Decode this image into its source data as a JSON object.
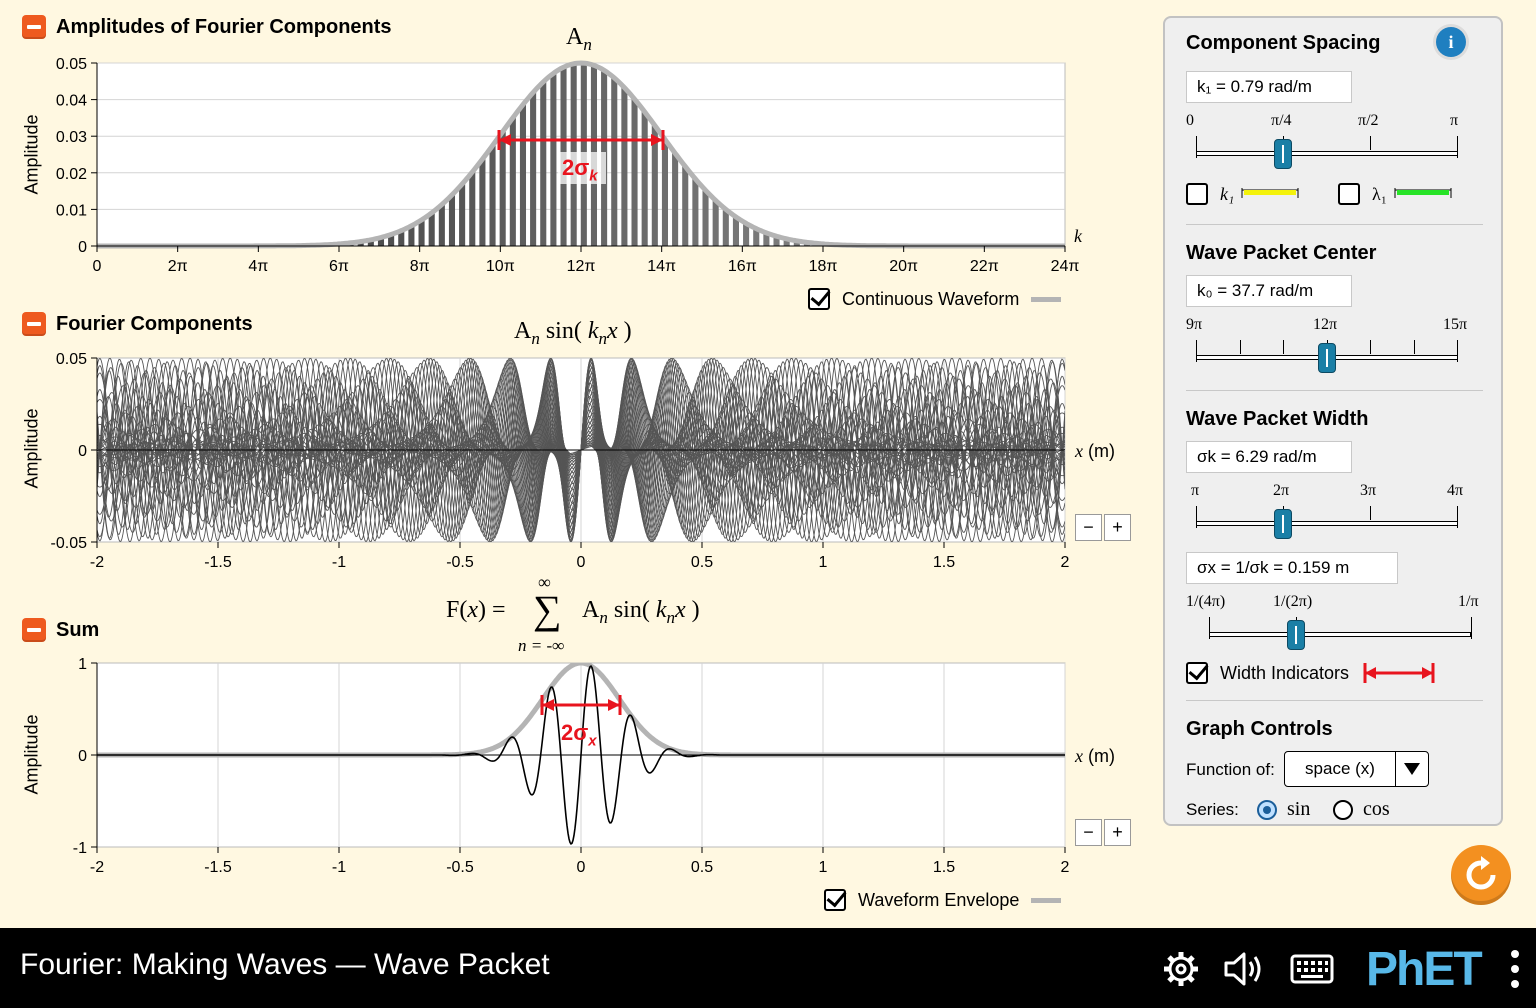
{
  "amplitudes": {
    "title": "Amplitudes of Fourier Components",
    "equation": "A",
    "equation_sub": "n",
    "ylabel": "Amplitude",
    "xaxis_symbol": "k",
    "width_label": "2σ",
    "width_label_sub": "k",
    "continuous_waveform_label": "Continuous Waveform",
    "continuous_waveform_checked": true
  },
  "components": {
    "title": "Fourier Components",
    "equation_parts": [
      "A",
      "n",
      "sin(",
      "k",
      "n",
      "x",
      ")"
    ],
    "ylabel": "Amplitude",
    "x_unit_symbol": "x",
    "x_unit": "(m)",
    "zoom_out": "−",
    "zoom_in": "+"
  },
  "sum": {
    "title": "Sum",
    "equation_lhs": "F(",
    "equation_lhs_var": "x",
    "equation_lhs_end": ") =",
    "sum_top": "∞",
    "sum_bottom": "n = -∞",
    "sum_symbol": "∑",
    "ylabel": "Amplitude",
    "x_unit_symbol": "x",
    "x_unit": "(m)",
    "width_label": "2σ",
    "width_label_sub": "x",
    "zoom_out": "−",
    "zoom_in": "+",
    "envelope_label": "Waveform Envelope",
    "envelope_checked": true
  },
  "panel": {
    "spacing": {
      "title": "Component Spacing",
      "readout": "k₁ = 0.79 rad/m",
      "ticks": [
        "0",
        "π/4",
        "π/2",
        "π"
      ],
      "value_fraction": 0.333,
      "k1_label": "k₁",
      "lambda1_label": "λ₁",
      "k1_checked": false,
      "lambda1_checked": false
    },
    "center": {
      "title": "Wave Packet Center",
      "readout": "k₀ = 37.7 rad/m",
      "ticks": [
        "9π",
        "12π",
        "15π"
      ],
      "value_fraction": 0.5
    },
    "width": {
      "title": "Wave Packet Width",
      "readout": "σk = 6.29 rad/m",
      "ticks": [
        "π",
        "2π",
        "3π",
        "4π"
      ],
      "value_fraction": 0.333,
      "sigma_x_readout": "σx = 1/σk = 0.159 m",
      "sigma_x_ticks": [
        "1/(4π)",
        "1/(2π)",
        "1/π"
      ],
      "sigma_x_fraction": 0.333,
      "width_indicators_label": "Width Indicators",
      "width_indicators_checked": true
    },
    "graph": {
      "title": "Graph Controls",
      "function_of_label": "Function of:",
      "function_of_value": "space (x)",
      "series_label": "Series:",
      "series_options": [
        "sin",
        "cos"
      ],
      "series_selected": "sin"
    }
  },
  "footer": {
    "title": "Fourier: Making Waves — Wave Packet",
    "brand": "PhET"
  },
  "colors": {
    "background": "#fff8e1",
    "accent_orange": "#ee5a1f",
    "width_indicator_red": "#e8141e",
    "envelope_gray": "#b4b4b4",
    "slider_blue": "#1a7fa6",
    "k1_yellow": "#f4f20a",
    "lambda1_green": "#27e327"
  },
  "chart_data": [
    {
      "type": "bar",
      "title": "A",
      "xlabel": "k",
      "ylabel": "Amplitude",
      "xlim": [
        0,
        75.4
      ],
      "ylim": [
        0,
        0.05
      ],
      "xticks": [
        "0",
        "2π",
        "4π",
        "6π",
        "8π",
        "10π",
        "12π",
        "14π",
        "16π",
        "18π",
        "20π",
        "22π",
        "24π"
      ],
      "yticks": [
        "0",
        "0.01",
        "0.02",
        "0.03",
        "0.04",
        "0.05"
      ],
      "component_spacing": 0.79,
      "center": 37.7,
      "sigma": 6.29,
      "peak": 0.05
    },
    {
      "type": "line",
      "title": "A sin( kx )",
      "xlabel": "x (m)",
      "ylabel": "Amplitude",
      "xlim": [
        -2,
        2
      ],
      "ylim": [
        -0.05,
        0.05
      ],
      "xticks": [
        "-2",
        "-1.5",
        "-1",
        "-0.5",
        "0",
        "0.5",
        "1",
        "1.5",
        "2"
      ],
      "yticks": [
        "0.05",
        "0",
        "-0.05"
      ]
    },
    {
      "type": "line",
      "title": "F(x)",
      "xlabel": "x (m)",
      "ylabel": "Amplitude",
      "xlim": [
        -2,
        2
      ],
      "ylim": [
        -1,
        1
      ],
      "xticks": [
        "-2",
        "-1.5",
        "-1",
        "-0.5",
        "0",
        "0.5",
        "1",
        "1.5",
        "2"
      ],
      "yticks": [
        "1",
        "0",
        "-1"
      ],
      "sigma_x": 0.159
    }
  ]
}
